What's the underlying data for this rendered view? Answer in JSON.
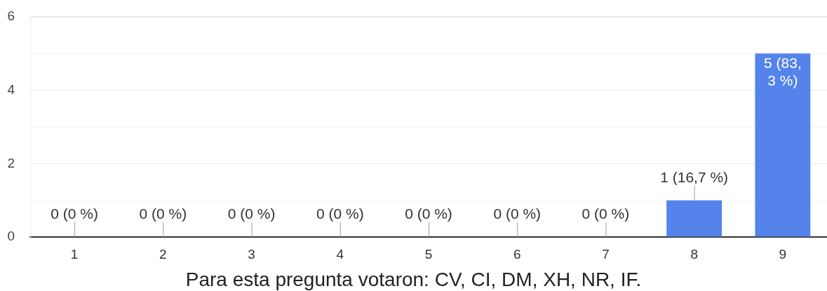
{
  "chart_data": {
    "type": "bar",
    "categories": [
      "1",
      "2",
      "3",
      "4",
      "5",
      "6",
      "7",
      "8",
      "9"
    ],
    "values": [
      0,
      0,
      0,
      0,
      0,
      0,
      0,
      1,
      5
    ],
    "color": "#5484eb",
    "ylim": [
      0,
      6
    ],
    "yticks": [
      0,
      {
        "value": 1,
        "label": null
      },
      2,
      {
        "value": 3,
        "label": null
      },
      4,
      {
        "value": 5,
        "label": null
      },
      6
    ],
    "grid": "y",
    "value_labels": [
      "0 (0 %)",
      "0 (0 %)",
      "0 (0 %)",
      "0 (0 %)",
      "0 (0 %)",
      "0 (0 %)",
      "0 (0 %)",
      "1 (16,7 %)",
      "5 (83,3 %)"
    ],
    "annotations": [
      "Para esta pregunta votaron: CV, CI, DM, XH, NR, IF."
    ]
  }
}
